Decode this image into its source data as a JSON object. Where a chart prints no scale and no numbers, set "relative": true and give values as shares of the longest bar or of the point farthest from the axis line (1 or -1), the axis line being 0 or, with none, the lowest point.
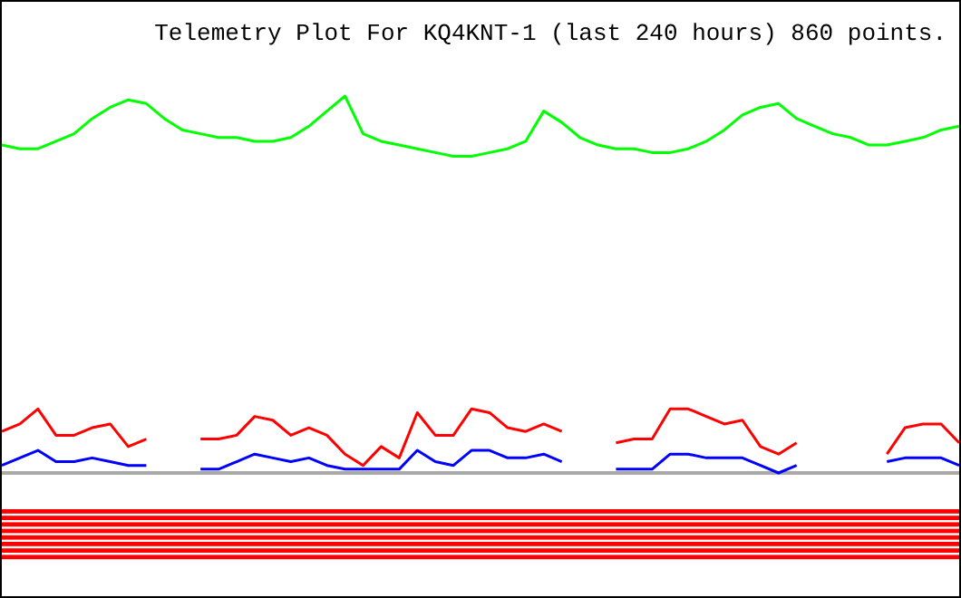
{
  "chart_data": {
    "type": "line",
    "title": "Telemetry Plot For KQ4KNT-1 (last 240 hours) 860 points.",
    "relative": true,
    "categories": [
      null,
      null,
      null,
      null,
      null,
      null,
      null,
      null,
      null,
      null,
      null,
      null,
      null,
      null,
      null,
      null,
      null,
      null,
      null,
      null,
      null,
      null,
      null,
      null,
      null,
      null,
      null,
      null,
      null,
      null,
      null,
      null,
      null,
      null,
      null,
      null,
      null,
      null,
      null,
      null,
      null,
      null,
      null,
      null,
      null,
      null,
      null,
      null,
      null,
      null,
      null,
      null,
      null,
      null
    ],
    "series": [
      {
        "color": "#00ff00",
        "values": [
          0.87,
          0.86,
          0.86,
          0.88,
          0.9,
          0.94,
          0.97,
          0.99,
          0.98,
          0.94,
          0.91,
          0.9,
          0.89,
          0.89,
          0.88,
          0.88,
          0.89,
          0.92,
          0.96,
          1,
          0.9,
          0.88,
          0.87,
          0.86,
          0.85,
          0.84,
          0.84,
          0.85,
          0.86,
          0.88,
          0.96,
          0.93,
          0.89,
          0.87,
          0.86,
          0.86,
          0.85,
          0.85,
          0.86,
          0.88,
          0.91,
          0.95,
          0.97,
          0.98,
          0.94,
          0.92,
          0.9,
          0.89,
          0.87,
          0.87,
          0.88,
          0.89,
          0.91,
          0.92
        ]
      },
      {
        "color": "#ff0000",
        "values": [
          0.11,
          0.13,
          0.17,
          0.1,
          0.1,
          0.12,
          0.13,
          0.07,
          0.09,
          null,
          null,
          0.09,
          0.09,
          0.1,
          0.15,
          0.14,
          0.1,
          0.12,
          0.1,
          0.05,
          0.02,
          0.07,
          0.04,
          0.16,
          0.1,
          0.1,
          0.17,
          0.16,
          0.12,
          0.11,
          0.13,
          0.11,
          null,
          null,
          0.08,
          0.09,
          0.09,
          0.17,
          0.17,
          0.15,
          0.13,
          0.14,
          0.07,
          0.05,
          0.08,
          null,
          null,
          null,
          null,
          0.05,
          0.12,
          0.13,
          0.13,
          0.08
        ]
      },
      {
        "color": "#0000ff",
        "values": [
          0.02,
          0.04,
          0.06,
          0.03,
          0.03,
          0.04,
          0.03,
          0.02,
          0.02,
          null,
          null,
          0.01,
          0.01,
          0.03,
          0.05,
          0.04,
          0.03,
          0.04,
          0.02,
          0.01,
          0.01,
          0.01,
          0.01,
          0.06,
          0.03,
          0.02,
          0.06,
          0.06,
          0.04,
          0.04,
          0.05,
          0.03,
          null,
          null,
          0.01,
          0.01,
          0.01,
          0.05,
          0.05,
          0.04,
          0.04,
          0.04,
          0.02,
          0,
          0.02,
          null,
          null,
          null,
          null,
          0.03,
          0.04,
          0.04,
          0.04,
          0.02
        ]
      }
    ]
  }
}
